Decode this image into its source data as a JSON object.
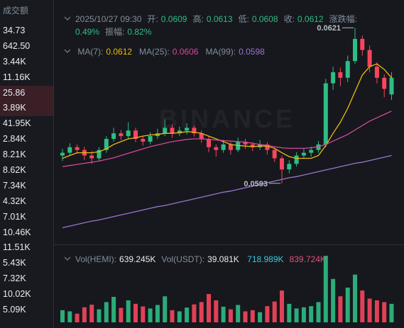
{
  "sidebar": {
    "title": "成交额",
    "rows": [
      "34.73",
      "642.50",
      "3.44K",
      "11.16K",
      "25.86",
      "3.89K",
      "41.95K",
      "2.84K",
      "8.21K",
      "8.62K",
      "7.34K",
      "4.32K",
      "7.01K",
      "10.46K",
      "11.51K",
      "5.43K",
      "7.32K",
      "10.02K",
      "5.09K"
    ]
  },
  "info": {
    "time": "2025/10/27 09:30",
    "open": {
      "label": "开:",
      "value": "0.0609"
    },
    "high": {
      "label": "高:",
      "value": "0.0613"
    },
    "low": {
      "label": "低:",
      "value": "0.0608"
    },
    "close": {
      "label": "收:",
      "value": "0.0612"
    },
    "change": {
      "label": "涨跌幅:",
      "value": "0.49%"
    },
    "amplitude": {
      "label": "振幅:",
      "value": "0.82%"
    }
  },
  "watermark": "BINANCE",
  "chart_data": {
    "type": "candlestick",
    "up_color": "#2ebd85",
    "down_color": "#f6465d",
    "ylim": [
      0.0582,
      0.0626
    ],
    "high_label": "0.0621",
    "low_label": "0.0593",
    "candles": [
      [
        0.0598,
        0.05992,
        0.0597,
        0.05985
      ],
      [
        0.05985,
        0.06002,
        0.0598,
        0.05995
      ],
      [
        0.05995,
        0.06,
        0.05983,
        0.0599
      ],
      [
        0.0599,
        0.05996,
        0.05972,
        0.0598
      ],
      [
        0.0598,
        0.05988,
        0.05965,
        0.05975
      ],
      [
        0.05975,
        0.05995,
        0.0597,
        0.0599
      ],
      [
        0.0599,
        0.06015,
        0.05985,
        0.0601
      ],
      [
        0.0601,
        0.0603,
        0.06005,
        0.0602
      ],
      [
        0.0602,
        0.06026,
        0.06008,
        0.06015
      ],
      [
        0.06015,
        0.0604,
        0.0601,
        0.06025
      ],
      [
        0.06025,
        0.0603,
        0.06004,
        0.0601
      ],
      [
        0.0601,
        0.06016,
        0.05998,
        0.06005
      ],
      [
        0.06005,
        0.06022,
        0.06,
        0.06015
      ],
      [
        0.06015,
        0.06028,
        0.0601,
        0.0602
      ],
      [
        0.0602,
        0.06045,
        0.06015,
        0.0603
      ],
      [
        0.0603,
        0.06036,
        0.06012,
        0.0602
      ],
      [
        0.0602,
        0.06032,
        0.06015,
        0.06025
      ],
      [
        0.06025,
        0.06038,
        0.06018,
        0.0603
      ],
      [
        0.0603,
        0.06034,
        0.06014,
        0.0602
      ],
      [
        0.0602,
        0.06025,
        0.06003,
        0.0601
      ],
      [
        0.0601,
        0.06014,
        0.05986,
        0.05995
      ],
      [
        0.05995,
        0.06,
        0.05978,
        0.0599
      ],
      [
        0.0599,
        0.06008,
        0.05985,
        0.06
      ],
      [
        0.06,
        0.06004,
        0.05982,
        0.0599
      ],
      [
        0.0599,
        0.06012,
        0.05986,
        0.06005
      ],
      [
        0.06005,
        0.0601,
        0.05992,
        0.06
      ],
      [
        0.06,
        0.06004,
        0.05988,
        0.05995
      ],
      [
        0.05995,
        0.06008,
        0.0599,
        0.06
      ],
      [
        0.06,
        0.06004,
        0.05982,
        0.0599
      ],
      [
        0.0599,
        0.05994,
        0.05968,
        0.05975
      ],
      [
        0.05975,
        0.0598,
        0.0593,
        0.05955
      ],
      [
        0.05955,
        0.05972,
        0.05948,
        0.05965
      ],
      [
        0.05965,
        0.05986,
        0.0596,
        0.0598
      ],
      [
        0.0598,
        0.05992,
        0.05975,
        0.05985
      ],
      [
        0.05985,
        0.05996,
        0.05978,
        0.0599
      ],
      [
        0.0599,
        0.06006,
        0.05985,
        0.06
      ],
      [
        0.06,
        0.06118,
        0.05995,
        0.0611
      ],
      [
        0.0611,
        0.0614,
        0.06098,
        0.0613
      ],
      [
        0.0613,
        0.06138,
        0.06105,
        0.0612
      ],
      [
        0.0612,
        0.0616,
        0.06112,
        0.0615
      ],
      [
        0.0615,
        0.0621,
        0.06145,
        0.0619
      ],
      [
        0.0619,
        0.06196,
        0.0616,
        0.0617
      ],
      [
        0.0617,
        0.06178,
        0.0613,
        0.0614
      ],
      [
        0.0614,
        0.06148,
        0.0611,
        0.0612
      ],
      [
        0.0612,
        0.06126,
        0.06085,
        0.061
      ],
      [
        0.0609,
        0.0613,
        0.0608,
        0.0612
      ]
    ],
    "series": [
      {
        "name": "MA(7):",
        "label": "0.0612",
        "color": "#f0b90b",
        "values": [
          0.05975,
          0.0598,
          0.05985,
          0.05985,
          0.05985,
          0.05987,
          0.05992,
          0.06,
          0.06005,
          0.0601,
          0.06012,
          0.06015,
          0.06017,
          0.06018,
          0.0602,
          0.0602,
          0.06021,
          0.06023,
          0.06022,
          0.0602,
          0.06015,
          0.0601,
          0.06005,
          0.06,
          0.05998,
          0.05997,
          0.05996,
          0.05997,
          0.05997,
          0.05993,
          0.05985,
          0.05978,
          0.05975,
          0.05975,
          0.05975,
          0.0598,
          0.05998,
          0.0602,
          0.0604,
          0.06065,
          0.06095,
          0.06125,
          0.0614,
          0.06145,
          0.06135,
          0.0612
        ]
      },
      {
        "name": "MA(25):",
        "label": "0.0606",
        "color": "#d6479b",
        "values": [
          0.0596,
          0.05962,
          0.05964,
          0.05966,
          0.05968,
          0.0597,
          0.05973,
          0.05976,
          0.0598,
          0.05984,
          0.05988,
          0.05992,
          0.05996,
          0.05999,
          0.06002,
          0.06005,
          0.06007,
          0.06009,
          0.0601,
          0.0601,
          0.06009,
          0.06008,
          0.06007,
          0.06006,
          0.06005,
          0.06004,
          0.06002,
          0.06,
          0.05998,
          0.05996,
          0.05994,
          0.05993,
          0.05993,
          0.05993,
          0.05994,
          0.05996,
          0.06,
          0.06006,
          0.06012,
          0.06018,
          0.06026,
          0.06034,
          0.06042,
          0.06048,
          0.06054,
          0.0606
        ]
      },
      {
        "name": "MA(99):",
        "label": "0.0598",
        "color": "#9c74d0",
        "values": [
          0.0585,
          0.05853,
          0.05856,
          0.05859,
          0.05862,
          0.05864,
          0.05867,
          0.0587,
          0.05873,
          0.05876,
          0.05879,
          0.05882,
          0.05885,
          0.05888,
          0.0589,
          0.05893,
          0.05896,
          0.05899,
          0.05902,
          0.05905,
          0.05908,
          0.05911,
          0.05914,
          0.05916,
          0.05919,
          0.05922,
          0.05925,
          0.05928,
          0.05931,
          0.05934,
          0.05937,
          0.0594,
          0.05942,
          0.05945,
          0.05948,
          0.05951,
          0.05954,
          0.05957,
          0.0596,
          0.05963,
          0.05966,
          0.05968,
          0.05971,
          0.05974,
          0.05977,
          0.0598
        ]
      }
    ],
    "volume": {
      "name": "Vol(HEMI):",
      "label": "639.245K",
      "quote_name": "Vol(USDT):",
      "quote_label": "39.081K",
      "ylim": [
        0,
        2400
      ],
      "values": [
        420,
        380,
        300,
        520,
        610,
        450,
        700,
        880,
        500,
        760,
        640,
        550,
        480,
        600,
        900,
        420,
        380,
        510,
        620,
        700,
        980,
        760,
        540,
        450,
        600,
        380,
        420,
        350,
        560,
        720,
        1100,
        640,
        480,
        520,
        560,
        700,
        2300,
        1500,
        900,
        1200,
        1650,
        1100,
        820,
        760,
        700,
        639.245
      ],
      "ma_labels": [
        {
          "label": "718.989K",
          "color": "#3dc8dc"
        },
        {
          "label": "839.724K",
          "color": "#e0507a"
        }
      ]
    }
  }
}
